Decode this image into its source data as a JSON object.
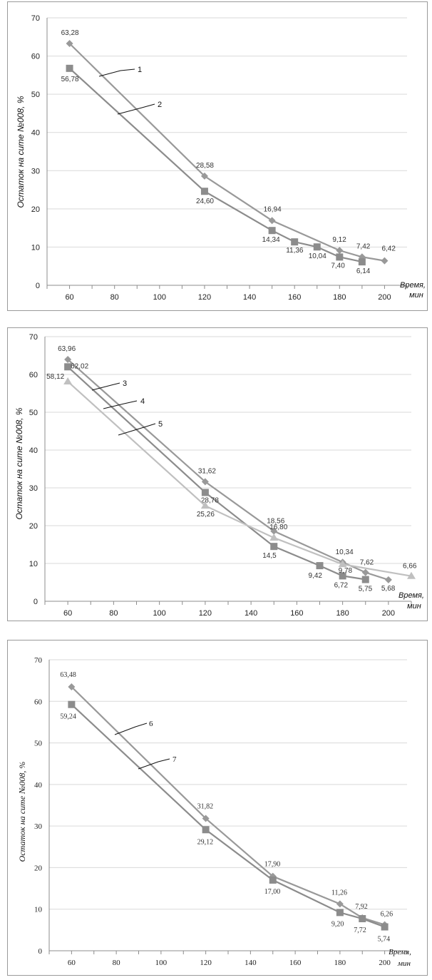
{
  "chart_data": [
    {
      "type": "line",
      "title": "",
      "ylabel": "Остаток на сите №008, %",
      "xlabel_line1": "Время,",
      "xlabel_line2": "мин",
      "xlim": [
        50,
        210
      ],
      "ylim": [
        0,
        70
      ],
      "x_ticks": [
        60,
        80,
        100,
        120,
        140,
        160,
        180,
        200
      ],
      "y_ticks": [
        0,
        10,
        20,
        30,
        40,
        50,
        60,
        70
      ],
      "series": [
        {
          "name": "1",
          "marker": "diamond",
          "color": "#999999",
          "points": [
            [
              60,
              63.28
            ],
            [
              120,
              28.58
            ],
            [
              150,
              16.94
            ],
            [
              180,
              9.12
            ],
            [
              190,
              7.42
            ],
            [
              200,
              6.42
            ]
          ],
          "labels": [
            "63,28",
            "28,58",
            "16,94",
            "9,12",
            "7,42",
            "6,42"
          ]
        },
        {
          "name": "2",
          "marker": "square",
          "color": "#8c8c8c",
          "points": [
            [
              60,
              56.78
            ],
            [
              120,
              24.6
            ],
            [
              150,
              14.34
            ],
            [
              160,
              11.36
            ],
            [
              170,
              10.04
            ],
            [
              180,
              7.4
            ],
            [
              190,
              6.14
            ]
          ],
          "labels": [
            "56,78",
            "24,60",
            "14,34",
            "11,36",
            "10,04",
            "7,40",
            "6,14"
          ]
        }
      ]
    },
    {
      "type": "line",
      "title": "",
      "ylabel": "Остаток на сите №008, %",
      "xlabel_line1": "Время,",
      "xlabel_line2": "мин",
      "xlim": [
        50,
        210
      ],
      "ylim": [
        0,
        70
      ],
      "x_ticks": [
        60,
        80,
        100,
        120,
        140,
        160,
        180,
        200
      ],
      "y_ticks": [
        0,
        10,
        20,
        30,
        40,
        50,
        60,
        70
      ],
      "series": [
        {
          "name": "3",
          "marker": "diamond",
          "color": "#999999",
          "points": [
            [
              60,
              63.96
            ],
            [
              120,
              31.62
            ],
            [
              150,
              18.56
            ],
            [
              180,
              10.34
            ],
            [
              190,
              7.62
            ],
            [
              200,
              5.68
            ]
          ],
          "labels": [
            "63,96",
            "31,62",
            "18,56",
            "10,34",
            "7,62",
            "5,68"
          ]
        },
        {
          "name": "4",
          "marker": "square",
          "color": "#8c8c8c",
          "points": [
            [
              60,
              62.02
            ],
            [
              120,
              28.78
            ],
            [
              150,
              14.5
            ],
            [
              170,
              9.42
            ],
            [
              180,
              6.72
            ],
            [
              190,
              5.75
            ]
          ],
          "labels": [
            "62,02",
            "28,78",
            "14,5",
            "9,42",
            "6,72",
            "5,75"
          ]
        },
        {
          "name": "5",
          "marker": "triangle",
          "color": "#c0c0c0",
          "points": [
            [
              60,
              58.12
            ],
            [
              120,
              25.26
            ],
            [
              150,
              16.8
            ],
            [
              180,
              9.78
            ],
            [
              210,
              6.66
            ]
          ],
          "labels": [
            "58,12",
            "25,26",
            "16,80",
            "9,78",
            "6,66"
          ]
        }
      ]
    },
    {
      "type": "line",
      "title": "",
      "ylabel": "Остаток на сите №008, %",
      "xlabel_line1": "Время,",
      "xlabel_line2": "мин",
      "xlim": [
        50,
        210
      ],
      "ylim": [
        0,
        70
      ],
      "x_ticks": [
        60,
        80,
        100,
        120,
        140,
        160,
        180,
        200
      ],
      "y_ticks": [
        0,
        10,
        20,
        30,
        40,
        50,
        60,
        70
      ],
      "series": [
        {
          "name": "6",
          "marker": "diamond",
          "color": "#999999",
          "points": [
            [
              60,
              63.48
            ],
            [
              120,
              31.82
            ],
            [
              150,
              17.9
            ],
            [
              180,
              11.26
            ],
            [
              190,
              7.92
            ],
            [
              200,
              6.26
            ]
          ],
          "labels": [
            "63,48",
            "31,82",
            "17,90",
            "11,26",
            "7,92",
            "6,26"
          ]
        },
        {
          "name": "7",
          "marker": "square",
          "color": "#8c8c8c",
          "points": [
            [
              60,
              59.24
            ],
            [
              120,
              29.12
            ],
            [
              150,
              17.0
            ],
            [
              180,
              9.2
            ],
            [
              190,
              7.72
            ],
            [
              200,
              5.74
            ]
          ],
          "labels": [
            "59,24",
            "29,12",
            "17,00",
            "9,20",
            "7,72",
            "5,74"
          ]
        }
      ]
    }
  ]
}
